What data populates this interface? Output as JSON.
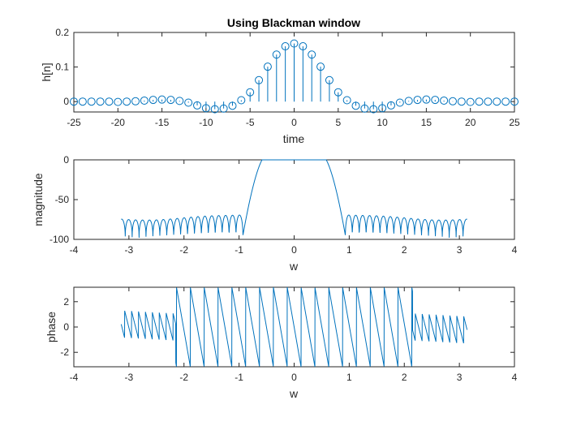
{
  "chart_data": [
    {
      "type": "stem",
      "title": "Using Blackman window",
      "xlabel": "time",
      "ylabel": "h[n]",
      "xlim": [
        -25,
        25
      ],
      "ylim": [
        -0.03,
        0.2
      ],
      "xticks": [
        -25,
        -20,
        -15,
        -10,
        -5,
        0,
        5,
        10,
        15,
        20,
        25
      ],
      "yticks": [
        0,
        0.1,
        0.2
      ],
      "xtick_labels": [
        "-25",
        "-20",
        "-15",
        "-10",
        "-5",
        "0",
        "5",
        "10",
        "15",
        "20",
        "25"
      ],
      "ytick_labels": [
        "0",
        "0.1",
        "0.2"
      ],
      "x": [
        -25,
        -24,
        -23,
        -22,
        -21,
        -20,
        -19,
        -18,
        -17,
        -16,
        -15,
        -14,
        -13,
        -12,
        -11,
        -10,
        -9,
        -8,
        -7,
        -6,
        -5,
        -4,
        -3,
        -2,
        -1,
        0,
        1,
        2,
        3,
        4,
        5,
        6,
        7,
        8,
        9,
        10,
        11,
        12,
        13,
        14,
        15,
        16,
        17,
        18,
        19,
        20,
        21,
        22,
        23,
        24,
        25
      ],
      "values": [
        0,
        0,
        0,
        0,
        0,
        -0.001,
        0,
        0.001,
        0.003,
        0.005,
        0.006,
        0.005,
        0.002,
        -0.003,
        -0.011,
        -0.019,
        -0.022,
        -0.02,
        -0.012,
        0.004,
        0.027,
        0.062,
        0.101,
        0.136,
        0.16,
        0.168,
        0.16,
        0.136,
        0.101,
        0.062,
        0.027,
        0.004,
        -0.012,
        -0.02,
        -0.022,
        -0.019,
        -0.011,
        -0.003,
        0.002,
        0.005,
        0.006,
        0.005,
        0.003,
        0.001,
        0,
        -0.001,
        0,
        0,
        0,
        0,
        0
      ],
      "color": "#0072bd"
    },
    {
      "type": "line",
      "title": "",
      "xlabel": "w",
      "ylabel": "magnitude",
      "xlim": [
        -4,
        4
      ],
      "ylim": [
        -100,
        0
      ],
      "xticks": [
        -4,
        -3,
        -2,
        -1,
        0,
        1,
        2,
        3,
        4
      ],
      "yticks": [
        -100,
        -50,
        0
      ],
      "xtick_labels": [
        "-4",
        "-3",
        "-2",
        "-1",
        "0",
        "1",
        "2",
        "3",
        "4"
      ],
      "ytick_labels": [
        "-100",
        "-50",
        "0"
      ],
      "series": [
        {
          "shape": "sidelobes",
          "x_start": -3.14,
          "x_end": 3.14,
          "passband_edge": 0.93,
          "lobe_spacing": 0.1257,
          "ripple_top_db": [
            -75,
            -68
          ],
          "ripple_bottom_db": -92,
          "mainlobe_peak_db": 0,
          "color": "#0072bd"
        }
      ]
    },
    {
      "type": "line",
      "title": "",
      "xlabel": "w",
      "ylabel": "phase",
      "xlim": [
        -4,
        4
      ],
      "ylim": [
        -3.14,
        3.14
      ],
      "xticks": [
        -4,
        -3,
        -2,
        -1,
        0,
        1,
        2,
        3,
        4
      ],
      "yticks": [
        -2,
        0,
        2
      ],
      "xtick_labels": [
        "-4",
        "-3",
        "-2",
        "-1",
        "0",
        "1",
        "2",
        "3",
        "4"
      ],
      "ytick_labels": [
        "-2",
        "0",
        "2"
      ],
      "series": [
        {
          "shape": "wrapped-linear-phase",
          "x_start": -3.14,
          "x_end": 3.14,
          "full_wrap_band": [
            -2.15,
            2.15
          ],
          "small_sawtooth_amplitude": 1.2,
          "color": "#0072bd"
        }
      ]
    }
  ]
}
